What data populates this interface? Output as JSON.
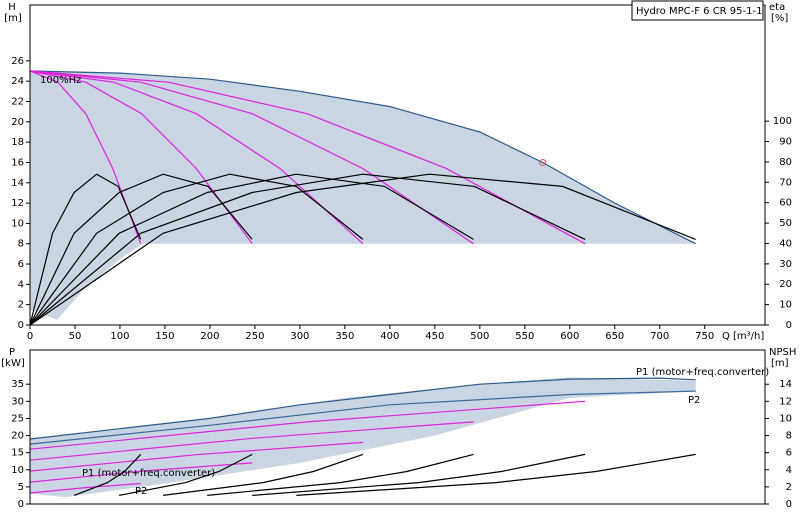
{
  "chart_data": [
    {
      "type": "line",
      "title": "Hydro MPC-F 6 CR 95-1-1",
      "ylabel": "H",
      "yunit": "[m]",
      "y2label": "eta",
      "y2unit": "[%]",
      "xlabel": "Q",
      "xunit": "[m³/h]",
      "annotation": "100%Hz",
      "xlim": [
        0,
        817
      ],
      "xticks": [
        0,
        50,
        100,
        150,
        200,
        250,
        300,
        350,
        400,
        450,
        500,
        550,
        600,
        650,
        700,
        750
      ],
      "ylim": [
        0,
        31.5
      ],
      "yticks": [
        0,
        2,
        4,
        6,
        8,
        10,
        12,
        14,
        16,
        18,
        20,
        22,
        24,
        26
      ],
      "y2lim": [
        0,
        157
      ],
      "y2ticks": [
        0,
        10,
        20,
        30,
        40,
        50,
        60,
        70,
        80,
        90,
        100
      ],
      "areas": [
        {
          "color": "#c9d5e2",
          "x": [
            0,
            100,
            200,
            300,
            400,
            500,
            570,
            650,
            740,
            125,
            100,
            60,
            30,
            0
          ],
          "values": [
            25,
            24.8,
            24.2,
            23,
            21.5,
            19,
            16,
            12,
            8,
            8,
            6.5,
            3.5,
            0.5,
            1.5
          ]
        }
      ],
      "series": [
        {
          "color": "#2a5a8a",
          "x": [
            0,
            100,
            200,
            300,
            400,
            500,
            570,
            650,
            740
          ],
          "values": [
            25,
            24.8,
            24.2,
            23,
            21.5,
            19,
            16,
            12,
            8
          ]
        },
        {
          "color": "#e020e0",
          "x": [
            0,
            31,
            62,
            92,
            123
          ],
          "values": [
            25,
            23.9,
            20.8,
            15.4,
            8
          ]
        },
        {
          "color": "#e020e0",
          "x": [
            0,
            62,
            124,
            185,
            247
          ],
          "values": [
            25,
            23.9,
            20.8,
            15.4,
            8
          ]
        },
        {
          "color": "#e020e0",
          "x": [
            0,
            93,
            185,
            278,
            370
          ],
          "values": [
            25,
            23.9,
            20.8,
            15.4,
            8
          ]
        },
        {
          "color": "#e020e0",
          "x": [
            0,
            123,
            247,
            370,
            493
          ],
          "values": [
            25,
            23.9,
            20.8,
            15.4,
            8
          ]
        },
        {
          "color": "#e020e0",
          "x": [
            0,
            154,
            308,
            463,
            617
          ],
          "values": [
            25,
            23.9,
            20.8,
            15.4,
            8
          ]
        },
        {
          "color": "#000000",
          "axis": "y2",
          "x": [
            0,
            25,
            49,
            74,
            98,
            123
          ],
          "values": [
            0,
            45,
            65,
            74,
            68,
            42
          ]
        },
        {
          "color": "#000000",
          "axis": "y2",
          "x": [
            0,
            49,
            99,
            148,
            198,
            247
          ],
          "values": [
            0,
            45,
            65,
            74,
            68,
            42
          ]
        },
        {
          "color": "#000000",
          "axis": "y2",
          "x": [
            0,
            74,
            148,
            222,
            296,
            370
          ],
          "values": [
            0,
            45,
            65,
            74,
            68,
            42
          ]
        },
        {
          "color": "#000000",
          "axis": "y2",
          "x": [
            0,
            99,
            197,
            296,
            394,
            493
          ],
          "values": [
            0,
            45,
            65,
            74,
            68,
            42
          ]
        },
        {
          "color": "#000000",
          "axis": "y2",
          "x": [
            0,
            123,
            247,
            370,
            494,
            617
          ],
          "values": [
            0,
            45,
            65,
            74,
            68,
            42
          ]
        },
        {
          "color": "#000000",
          "axis": "y2",
          "x": [
            0,
            148,
            296,
            444,
            592,
            740
          ],
          "values": [
            0,
            45,
            65,
            74,
            68,
            42
          ]
        }
      ],
      "points": [
        {
          "x": 570,
          "y": 16,
          "color": "#e05050"
        }
      ]
    },
    {
      "type": "line",
      "ylabel": "P",
      "yunit": "[kW]",
      "y2label": "NPSH",
      "y2unit": "[m]",
      "annotations": [
        "P1 (motor+freq.converter)",
        "P2",
        "P1 (motor+freq.converter)",
        "P2"
      ],
      "xlim": [
        0,
        817
      ],
      "ylim": [
        0,
        45
      ],
      "yticks": [
        0,
        5,
        10,
        15,
        20,
        25,
        30,
        35
      ],
      "y2lim": [
        0,
        18
      ],
      "y2ticks": [
        0,
        2,
        4,
        6,
        8,
        10,
        12,
        14
      ],
      "areas": [
        {
          "color": "#c9d5e2",
          "x": [
            0,
            200,
            350,
            500,
            600,
            740,
            740,
            600,
            450,
            300,
            150,
            40,
            0
          ],
          "values": [
            19,
            25,
            31,
            35,
            37,
            36,
            33,
            31,
            20,
            12,
            6,
            2,
            3
          ]
        }
      ],
      "series": [
        {
          "color": "#2a5a8a",
          "x": [
            0,
            100,
            200,
            300,
            400,
            500,
            600,
            700,
            740
          ],
          "values": [
            19,
            22,
            25,
            29,
            32,
            35,
            36.5,
            36.8,
            36.3
          ]
        },
        {
          "color": "#3a6a9a",
          "x": [
            0,
            200,
            400,
            600,
            740
          ],
          "values": [
            17.5,
            23,
            29,
            32,
            33
          ]
        },
        {
          "color": "#e020e0",
          "x": [
            0,
            62,
            123
          ],
          "values": [
            3.2,
            4.8,
            6
          ]
        },
        {
          "color": "#e020e0",
          "x": [
            0,
            124,
            247
          ],
          "values": [
            6.4,
            9.6,
            12
          ]
        },
        {
          "color": "#e020e0",
          "x": [
            0,
            185,
            370
          ],
          "values": [
            9.6,
            14.4,
            18
          ]
        },
        {
          "color": "#e020e0",
          "x": [
            0,
            247,
            493
          ],
          "values": [
            12.8,
            19.2,
            24
          ]
        },
        {
          "color": "#e020e0",
          "x": [
            0,
            308,
            617
          ],
          "values": [
            16,
            24,
            30
          ]
        },
        {
          "color": "#000000",
          "axis": "y2",
          "x": [
            49,
            86,
            105,
            123
          ],
          "values": [
            1,
            2.5,
            3.8,
            5.8
          ]
        },
        {
          "color": "#000000",
          "axis": "y2",
          "x": [
            99,
            173,
            210,
            247
          ],
          "values": [
            1,
            2.5,
            3.8,
            5.8
          ]
        },
        {
          "color": "#000000",
          "axis": "y2",
          "x": [
            148,
            259,
            315,
            370
          ],
          "values": [
            1,
            2.5,
            3.8,
            5.8
          ]
        },
        {
          "color": "#000000",
          "axis": "y2",
          "x": [
            197,
            345,
            419,
            493
          ],
          "values": [
            1,
            2.5,
            3.8,
            5.8
          ]
        },
        {
          "color": "#000000",
          "axis": "y2",
          "x": [
            247,
            432,
            524,
            617
          ],
          "values": [
            1,
            2.5,
            3.8,
            5.8
          ]
        },
        {
          "color": "#000000",
          "axis": "y2",
          "x": [
            296,
            518,
            629,
            740
          ],
          "values": [
            1,
            2.5,
            3.8,
            5.8
          ]
        }
      ]
    }
  ]
}
